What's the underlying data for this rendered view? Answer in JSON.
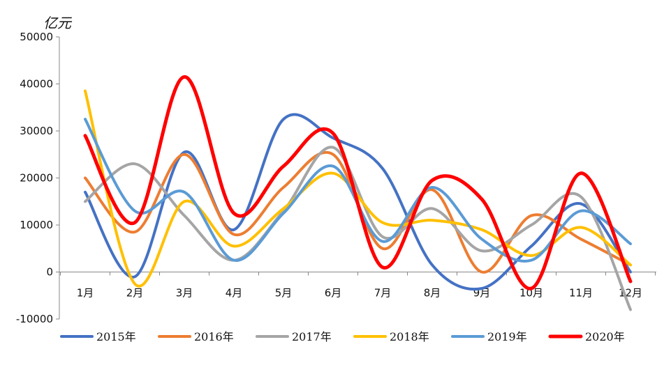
{
  "chart_data": {
    "type": "line",
    "title": "",
    "unit_label": "亿元",
    "xlabel": "",
    "ylabel": "",
    "categories": [
      "1月",
      "2月",
      "3月",
      "4月",
      "5月",
      "6月",
      "7月",
      "8月",
      "9月",
      "10月",
      "11月",
      "12月"
    ],
    "ylim": [
      -10000,
      50000
    ],
    "yticks": [
      -10000,
      0,
      10000,
      20000,
      30000,
      40000,
      50000
    ],
    "grid": false,
    "smooth": true,
    "legend_position": "bottom",
    "series": [
      {
        "name": "2015年",
        "color": "#4472C4",
        "values": [
          17000,
          -1000,
          25500,
          9000,
          32500,
          28500,
          22000,
          1500,
          -3500,
          5500,
          14500,
          0
        ]
      },
      {
        "name": "2016年",
        "color": "#ED7D31",
        "values": [
          20000,
          8500,
          25000,
          8000,
          18000,
          25000,
          5000,
          17500,
          0,
          12000,
          7000,
          1500
        ]
      },
      {
        "name": "2017年",
        "color": "#A5A5A5",
        "values": [
          15000,
          23000,
          12000,
          2500,
          13000,
          26500,
          7500,
          13500,
          4500,
          10000,
          16000,
          -8000
        ]
      },
      {
        "name": "2018年",
        "color": "#FFC000",
        "values": [
          38500,
          -2500,
          15000,
          5500,
          13500,
          21000,
          10500,
          11000,
          9000,
          3500,
          9500,
          1500
        ]
      },
      {
        "name": "2019年",
        "color": "#5B9BD5",
        "values": [
          32500,
          13000,
          17000,
          2500,
          12500,
          22500,
          6500,
          18000,
          7000,
          2500,
          13000,
          6000
        ]
      },
      {
        "name": "2020年",
        "color": "#FF0000",
        "values": [
          29000,
          10500,
          41500,
          12500,
          22500,
          29500,
          1000,
          19500,
          15500,
          -3500,
          21000,
          -2000
        ]
      }
    ]
  }
}
